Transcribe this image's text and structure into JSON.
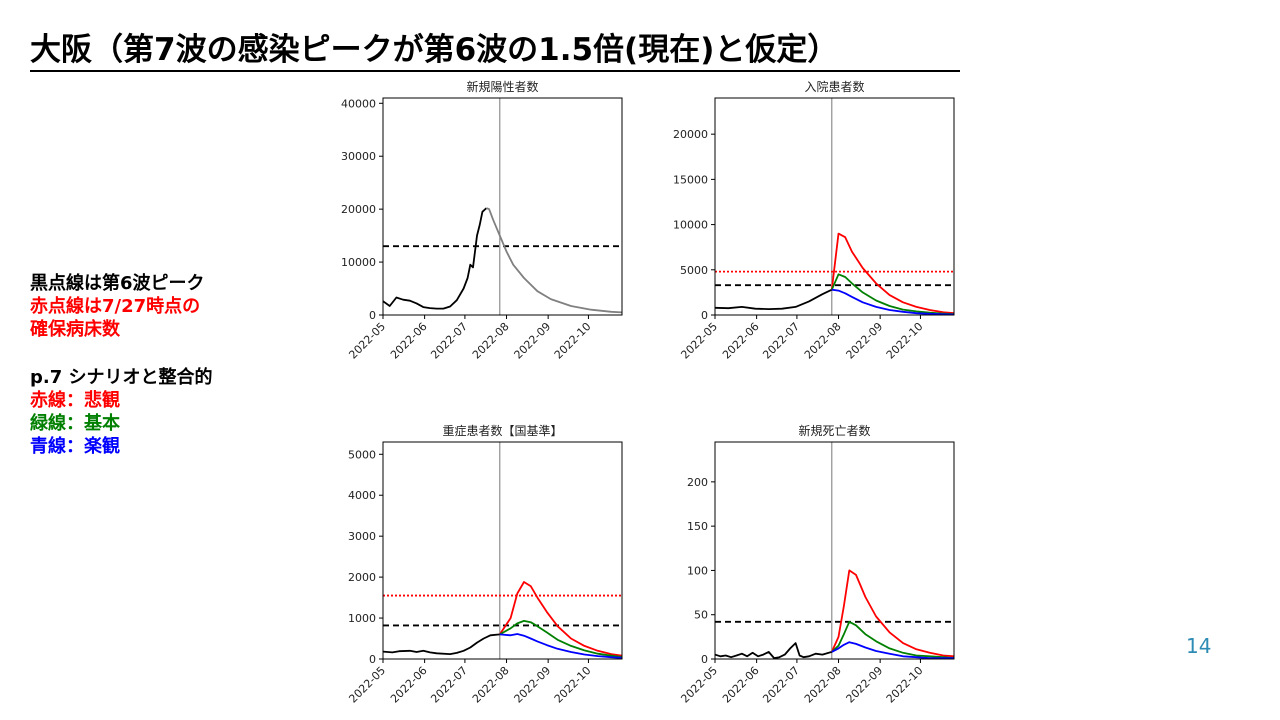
{
  "title": "大阪（第7波の感染ピークが第6波の1.5倍(現在)と仮定）",
  "legend_notes": {
    "black_dotted": "黒点線は第6波ピーク",
    "red_dotted_1": "赤点線は7/27時点の",
    "red_dotted_2": "確保病床数",
    "scenario_heading": "p.7 シナリオと整合的",
    "red_line": "赤線：悲観",
    "green_line": "緑線：基本",
    "blue_line": "青線：楽観"
  },
  "page_number": "14",
  "colors": {
    "pessimistic": "#ff0000",
    "base": "#008000",
    "optimistic": "#0000ff",
    "actual": "#000000",
    "projection": "#808080",
    "page_number": "#2e8bb5"
  },
  "chart_data": [
    {
      "type": "line",
      "title": "新規陽性者数",
      "x_ticks": [
        "2022-05",
        "2022-06",
        "2022-07",
        "2022-08",
        "2022-09",
        "2022-10"
      ],
      "ylim": [
        0,
        41000
      ],
      "y_ticks": [
        0,
        10000,
        20000,
        30000,
        40000
      ],
      "vline": 87,
      "hlines": [
        {
          "y": 13000,
          "style": "dashed",
          "color": "#000000"
        }
      ],
      "series": [
        {
          "role": "actual",
          "color": "#000000",
          "points": [
            [
              0,
              2600
            ],
            [
              5,
              1700
            ],
            [
              10,
              3300
            ],
            [
              15,
              2900
            ],
            [
              20,
              2700
            ],
            [
              25,
              2200
            ],
            [
              30,
              1500
            ],
            [
              35,
              1300
            ],
            [
              40,
              1200
            ],
            [
              45,
              1200
            ],
            [
              50,
              1600
            ],
            [
              55,
              2800
            ],
            [
              60,
              5000
            ],
            [
              63,
              7000
            ],
            [
              65,
              9500
            ],
            [
              67,
              9000
            ],
            [
              70,
              15000
            ],
            [
              72,
              17000
            ],
            [
              74,
              19500
            ],
            [
              77,
              20200
            ]
          ]
        },
        {
          "role": "projection",
          "color": "#808080",
          "points": [
            [
              77,
              20200
            ],
            [
              79,
              20000
            ],
            [
              82,
              18000
            ],
            [
              87,
              15000
            ],
            [
              92,
              12000
            ],
            [
              97,
              9500
            ],
            [
              105,
              7000
            ],
            [
              115,
              4500
            ],
            [
              125,
              3000
            ],
            [
              140,
              1700
            ],
            [
              155,
              1000
            ],
            [
              170,
              600
            ],
            [
              178,
              500
            ]
          ]
        }
      ]
    },
    {
      "type": "line",
      "title": "入院患者数",
      "x_ticks": [
        "2022-05",
        "2022-06",
        "2022-07",
        "2022-08",
        "2022-09",
        "2022-10"
      ],
      "ylim": [
        0,
        24000
      ],
      "y_ticks": [
        0,
        5000,
        10000,
        15000,
        20000
      ],
      "vline": 87,
      "hlines": [
        {
          "y": 4800,
          "style": "dotted",
          "color": "#ff0000"
        },
        {
          "y": 3300,
          "style": "dashed",
          "color": "#000000"
        }
      ],
      "series": [
        {
          "role": "actual",
          "color": "#000000",
          "points": [
            [
              0,
              800
            ],
            [
              10,
              750
            ],
            [
              20,
              900
            ],
            [
              30,
              700
            ],
            [
              40,
              650
            ],
            [
              50,
              700
            ],
            [
              60,
              900
            ],
            [
              70,
              1500
            ],
            [
              80,
              2300
            ],
            [
              87,
              2800
            ]
          ]
        },
        {
          "role": "pessimistic",
          "color": "#ff0000",
          "points": [
            [
              87,
              2800
            ],
            [
              92,
              9000
            ],
            [
              97,
              8600
            ],
            [
              102,
              7000
            ],
            [
              110,
              5200
            ],
            [
              120,
              3500
            ],
            [
              130,
              2200
            ],
            [
              140,
              1400
            ],
            [
              150,
              900
            ],
            [
              160,
              550
            ],
            [
              170,
              300
            ],
            [
              178,
              200
            ]
          ]
        },
        {
          "role": "base",
          "color": "#008000",
          "points": [
            [
              87,
              2800
            ],
            [
              92,
              4500
            ],
            [
              97,
              4200
            ],
            [
              102,
              3500
            ],
            [
              110,
              2500
            ],
            [
              120,
              1600
            ],
            [
              130,
              1000
            ],
            [
              140,
              600
            ],
            [
              150,
              400
            ],
            [
              160,
              250
            ],
            [
              170,
              150
            ],
            [
              178,
              100
            ]
          ]
        },
        {
          "role": "optimistic",
          "color": "#0000ff",
          "points": [
            [
              87,
              2800
            ],
            [
              92,
              2700
            ],
            [
              97,
              2400
            ],
            [
              102,
              2000
            ],
            [
              110,
              1400
            ],
            [
              120,
              900
            ],
            [
              130,
              550
            ],
            [
              140,
              350
            ],
            [
              150,
              200
            ],
            [
              160,
              130
            ],
            [
              170,
              80
            ],
            [
              178,
              50
            ]
          ]
        }
      ]
    },
    {
      "type": "line",
      "title": "重症患者数【国基準】",
      "x_ticks": [
        "2022-05",
        "2022-06",
        "2022-07",
        "2022-08",
        "2022-09",
        "2022-10"
      ],
      "ylim": [
        0,
        5300
      ],
      "y_ticks": [
        0,
        1000,
        2000,
        3000,
        4000,
        5000
      ],
      "vline": 87,
      "hlines": [
        {
          "y": 1550,
          "style": "dotted",
          "color": "#ff0000"
        },
        {
          "y": 820,
          "style": "dashed",
          "color": "#000000"
        }
      ],
      "series": [
        {
          "role": "actual",
          "color": "#000000",
          "points": [
            [
              0,
              180
            ],
            [
              7,
              160
            ],
            [
              12,
              190
            ],
            [
              20,
              200
            ],
            [
              25,
              170
            ],
            [
              30,
              200
            ],
            [
              35,
              160
            ],
            [
              40,
              140
            ],
            [
              50,
              120
            ],
            [
              55,
              150
            ],
            [
              60,
              200
            ],
            [
              65,
              280
            ],
            [
              70,
              400
            ],
            [
              75,
              500
            ],
            [
              80,
              580
            ],
            [
              87,
              600
            ]
          ]
        },
        {
          "role": "pessimistic",
          "color": "#ff0000",
          "points": [
            [
              87,
              600
            ],
            [
              95,
              1000
            ],
            [
              100,
              1600
            ],
            [
              105,
              1880
            ],
            [
              110,
              1780
            ],
            [
              115,
              1500
            ],
            [
              122,
              1150
            ],
            [
              130,
              800
            ],
            [
              140,
              500
            ],
            [
              150,
              320
            ],
            [
              160,
              200
            ],
            [
              170,
              120
            ],
            [
              178,
              80
            ]
          ]
        },
        {
          "role": "base",
          "color": "#008000",
          "points": [
            [
              87,
              600
            ],
            [
              95,
              750
            ],
            [
              100,
              870
            ],
            [
              105,
              930
            ],
            [
              110,
              900
            ],
            [
              115,
              800
            ],
            [
              122,
              650
            ],
            [
              130,
              470
            ],
            [
              140,
              320
            ],
            [
              150,
              210
            ],
            [
              160,
              130
            ],
            [
              170,
              80
            ],
            [
              178,
              50
            ]
          ]
        },
        {
          "role": "optimistic",
          "color": "#0000ff",
          "points": [
            [
              87,
              600
            ],
            [
              95,
              580
            ],
            [
              100,
              610
            ],
            [
              105,
              570
            ],
            [
              110,
              500
            ],
            [
              115,
              430
            ],
            [
              122,
              340
            ],
            [
              130,
              250
            ],
            [
              140,
              170
            ],
            [
              150,
              110
            ],
            [
              160,
              70
            ],
            [
              170,
              45
            ],
            [
              178,
              30
            ]
          ]
        }
      ]
    },
    {
      "type": "line",
      "title": "新規死亡者数",
      "x_ticks": [
        "2022-05",
        "2022-06",
        "2022-07",
        "2022-08",
        "2022-09",
        "2022-10"
      ],
      "ylim": [
        0,
        245
      ],
      "y_ticks": [
        0,
        50,
        100,
        150,
        200
      ],
      "vline": 87,
      "hlines": [
        {
          "y": 42,
          "style": "dashed",
          "color": "#000000"
        }
      ],
      "series": [
        {
          "role": "actual",
          "color": "#000000",
          "points": [
            [
              0,
              5
            ],
            [
              4,
              3
            ],
            [
              8,
              4
            ],
            [
              12,
              2
            ],
            [
              16,
              4
            ],
            [
              20,
              6
            ],
            [
              24,
              3
            ],
            [
              28,
              7
            ],
            [
              32,
              3
            ],
            [
              36,
              5
            ],
            [
              40,
              8
            ],
            [
              44,
              1
            ],
            [
              48,
              2
            ],
            [
              52,
              5
            ],
            [
              56,
              12
            ],
            [
              60,
              18
            ],
            [
              63,
              4
            ],
            [
              66,
              2
            ],
            [
              70,
              3
            ],
            [
              75,
              6
            ],
            [
              80,
              5
            ],
            [
              87,
              8
            ]
          ]
        },
        {
          "role": "pessimistic",
          "color": "#ff0000",
          "points": [
            [
              87,
              8
            ],
            [
              92,
              25
            ],
            [
              96,
              60
            ],
            [
              100,
              100
            ],
            [
              105,
              95
            ],
            [
              112,
              70
            ],
            [
              120,
              48
            ],
            [
              130,
              30
            ],
            [
              140,
              18
            ],
            [
              150,
              11
            ],
            [
              160,
              7
            ],
            [
              170,
              4
            ],
            [
              178,
              3
            ]
          ]
        },
        {
          "role": "base",
          "color": "#008000",
          "points": [
            [
              87,
              8
            ],
            [
              92,
              15
            ],
            [
              96,
              28
            ],
            [
              100,
              42
            ],
            [
              105,
              38
            ],
            [
              112,
              28
            ],
            [
              120,
              20
            ],
            [
              130,
              12
            ],
            [
              140,
              7
            ],
            [
              150,
              4
            ],
            [
              160,
              3
            ],
            [
              170,
              2
            ],
            [
              178,
              1
            ]
          ]
        },
        {
          "role": "optimistic",
          "color": "#0000ff",
          "points": [
            [
              87,
              8
            ],
            [
              92,
              12
            ],
            [
              96,
              16
            ],
            [
              100,
              19
            ],
            [
              105,
              17
            ],
            [
              112,
              13
            ],
            [
              120,
              9
            ],
            [
              130,
              6
            ],
            [
              140,
              3
            ],
            [
              150,
              2
            ],
            [
              160,
              1
            ],
            [
              170,
              1
            ],
            [
              178,
              1
            ]
          ]
        }
      ]
    }
  ]
}
